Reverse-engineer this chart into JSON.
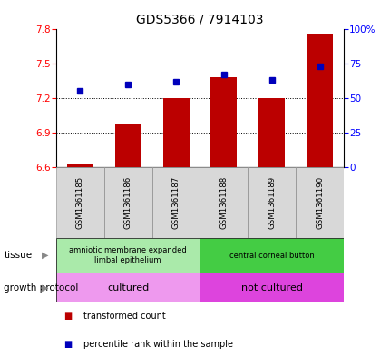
{
  "title": "GDS5366 / 7914103",
  "samples": [
    "GSM1361185",
    "GSM1361186",
    "GSM1361187",
    "GSM1361188",
    "GSM1361189",
    "GSM1361190"
  ],
  "transformed_counts": [
    6.62,
    6.97,
    7.2,
    7.38,
    7.2,
    7.76
  ],
  "percentile_ranks": [
    55,
    60,
    62,
    67,
    63,
    73
  ],
  "ylim_left": [
    6.6,
    7.8
  ],
  "ylim_right": [
    0,
    100
  ],
  "yticks_left": [
    6.6,
    6.9,
    7.2,
    7.5,
    7.8
  ],
  "yticks_right": [
    0,
    25,
    50,
    75,
    100
  ],
  "bar_color": "#bb0000",
  "dot_color": "#0000bb",
  "tissue_groups": [
    {
      "label": "amniotic membrane expanded\nlimbal epithelium",
      "start": 0,
      "end": 3,
      "color": "#aaeaaa"
    },
    {
      "label": "central corneal button",
      "start": 3,
      "end": 6,
      "color": "#44cc44"
    }
  ],
  "protocol_groups": [
    {
      "label": "cultured",
      "start": 0,
      "end": 3,
      "color": "#ee99ee"
    },
    {
      "label": "not cultured",
      "start": 3,
      "end": 6,
      "color": "#dd44dd"
    }
  ],
  "tissue_label": "tissue",
  "protocol_label": "growth protocol",
  "legend_items": [
    {
      "color": "#bb0000",
      "label": "transformed count"
    },
    {
      "color": "#0000bb",
      "label": "percentile rank within the sample"
    }
  ],
  "bar_width": 0.55,
  "plot_bg": "#ffffff",
  "box_bg": "#d8d8d8"
}
